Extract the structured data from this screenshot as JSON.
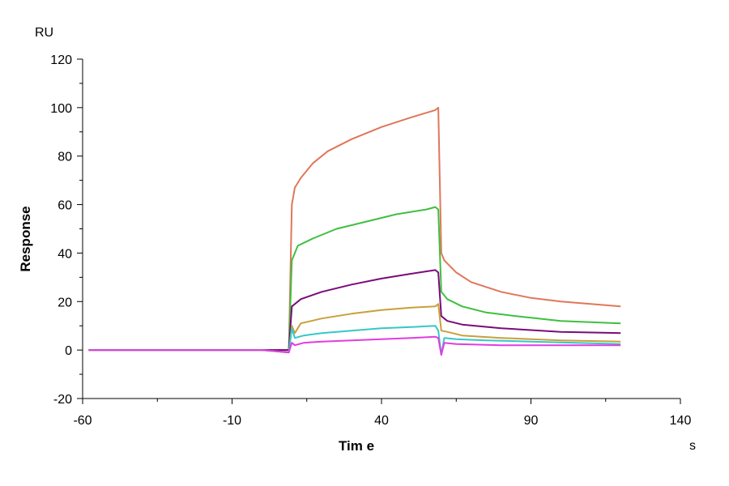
{
  "chart_data": {
    "type": "line",
    "xlabel": "Tim e",
    "ylabel": "Response",
    "x_unit": "s",
    "y_unit": "RU",
    "xlim": [
      -60,
      140
    ],
    "ylim": [
      -20,
      120
    ],
    "x_ticks": [
      -60,
      -10,
      40,
      90,
      140
    ],
    "y_ticks": [
      -20,
      0,
      20,
      40,
      60,
      80,
      100,
      120
    ],
    "grid": false,
    "series": [
      {
        "color": "#e0775a",
        "points": [
          [
            -58,
            0
          ],
          [
            -40,
            0
          ],
          [
            0,
            0
          ],
          [
            9,
            0
          ],
          [
            10,
            60
          ],
          [
            11,
            67
          ],
          [
            13,
            71
          ],
          [
            17,
            77
          ],
          [
            22,
            82
          ],
          [
            30,
            87
          ],
          [
            40,
            92
          ],
          [
            50,
            96
          ],
          [
            58,
            99
          ],
          [
            59,
            100
          ],
          [
            60,
            40
          ],
          [
            61,
            37
          ],
          [
            65,
            32
          ],
          [
            70,
            28
          ],
          [
            80,
            24
          ],
          [
            90,
            21.5
          ],
          [
            100,
            20
          ],
          [
            110,
            19
          ],
          [
            120,
            18
          ]
        ]
      },
      {
        "color": "#3fbf3f",
        "points": [
          [
            -58,
            0
          ],
          [
            0,
            0
          ],
          [
            9,
            0
          ],
          [
            10,
            37
          ],
          [
            12,
            43
          ],
          [
            17,
            46
          ],
          [
            25,
            50
          ],
          [
            35,
            53
          ],
          [
            45,
            56
          ],
          [
            55,
            58
          ],
          [
            58,
            59
          ],
          [
            59,
            58
          ],
          [
            60,
            24
          ],
          [
            62,
            21
          ],
          [
            67,
            18
          ],
          [
            75,
            15.5
          ],
          [
            85,
            14
          ],
          [
            100,
            12
          ],
          [
            120,
            11
          ]
        ]
      },
      {
        "color": "#7a0b7a",
        "points": [
          [
            -58,
            0
          ],
          [
            0,
            0
          ],
          [
            9,
            0
          ],
          [
            10,
            18
          ],
          [
            13,
            21
          ],
          [
            20,
            24
          ],
          [
            30,
            27
          ],
          [
            40,
            29.5
          ],
          [
            50,
            31.5
          ],
          [
            58,
            33
          ],
          [
            59,
            32
          ],
          [
            60,
            14
          ],
          [
            62,
            12
          ],
          [
            67,
            10.5
          ],
          [
            80,
            9
          ],
          [
            100,
            7.5
          ],
          [
            120,
            7
          ]
        ]
      },
      {
        "color": "#c8a03c",
        "points": [
          [
            -58,
            0
          ],
          [
            0,
            0
          ],
          [
            9,
            -1
          ],
          [
            10,
            10
          ],
          [
            11,
            7
          ],
          [
            13,
            11
          ],
          [
            20,
            13
          ],
          [
            30,
            15
          ],
          [
            40,
            16.5
          ],
          [
            50,
            17.5
          ],
          [
            58,
            18
          ],
          [
            59,
            19
          ],
          [
            60,
            8
          ],
          [
            62,
            7.5
          ],
          [
            67,
            6
          ],
          [
            80,
            5
          ],
          [
            100,
            4
          ],
          [
            120,
            3.5
          ]
        ]
      },
      {
        "color": "#36c7c7",
        "points": [
          [
            -58,
            0
          ],
          [
            0,
            0
          ],
          [
            9,
            -1
          ],
          [
            10,
            9
          ],
          [
            11,
            5
          ],
          [
            14,
            6
          ],
          [
            20,
            7
          ],
          [
            30,
            8
          ],
          [
            40,
            9
          ],
          [
            50,
            9.5
          ],
          [
            58,
            10
          ],
          [
            59,
            8
          ],
          [
            60,
            -2
          ],
          [
            61,
            5
          ],
          [
            65,
            4.5
          ],
          [
            75,
            4
          ],
          [
            90,
            3.5
          ],
          [
            105,
            3
          ],
          [
            120,
            2.5
          ]
        ]
      },
      {
        "color": "#e23be2",
        "points": [
          [
            -58,
            0
          ],
          [
            0,
            0
          ],
          [
            9,
            -1
          ],
          [
            10,
            3
          ],
          [
            11,
            2
          ],
          [
            14,
            3
          ],
          [
            20,
            3.5
          ],
          [
            30,
            4
          ],
          [
            40,
            4.5
          ],
          [
            50,
            5
          ],
          [
            58,
            5.5
          ],
          [
            59,
            5
          ],
          [
            60,
            -2
          ],
          [
            61,
            3
          ],
          [
            65,
            2.5
          ],
          [
            80,
            2
          ],
          [
            100,
            2
          ],
          [
            120,
            2
          ]
        ]
      }
    ]
  }
}
